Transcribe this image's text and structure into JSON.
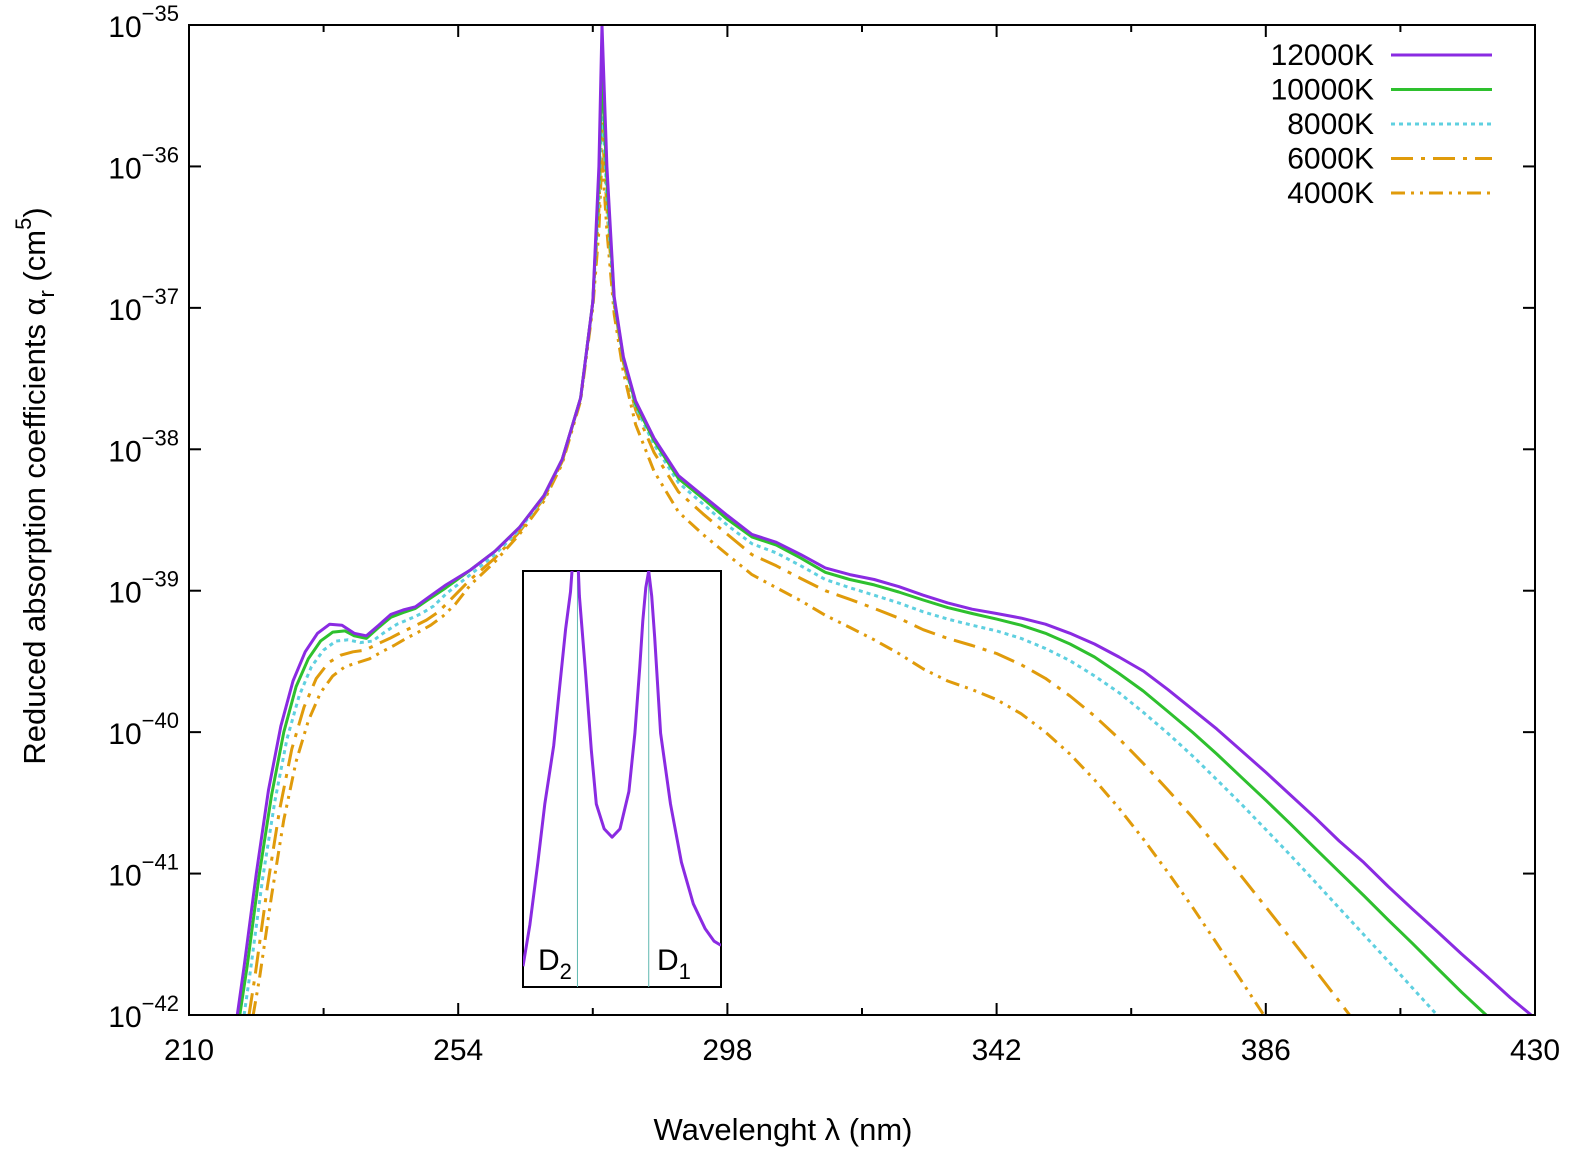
{
  "chart_data": {
    "type": "line",
    "xlabel": "Wavelenght λ (nm)",
    "ylabel": {
      "main": "Reduced absorption coefficients α",
      "sub": "r",
      "unit_open": " (cm",
      "unit_sup": "5",
      "unit_close": ")"
    },
    "scale": {
      "x": "linear",
      "y": "log"
    },
    "xlim": [
      210,
      430
    ],
    "ylim": [
      1e-42,
      1e-35
    ],
    "grid": false,
    "legend_position": "top-right",
    "x_ticks": [
      {
        "value": 210,
        "label": "210"
      },
      {
        "value": 254,
        "label": "254"
      },
      {
        "value": 298,
        "label": "298"
      },
      {
        "value": 342,
        "label": "342"
      },
      {
        "value": 386,
        "label": "386"
      },
      {
        "value": 430,
        "label": "430"
      }
    ],
    "y_ticks": [
      {
        "value": -35,
        "base": "10",
        "exp": "−35"
      },
      {
        "value": -36,
        "base": "10",
        "exp": "−36"
      },
      {
        "value": -37,
        "base": "10",
        "exp": "−37"
      },
      {
        "value": -38,
        "base": "10",
        "exp": "−38"
      },
      {
        "value": -39,
        "base": "10",
        "exp": "−39"
      },
      {
        "value": -40,
        "base": "10",
        "exp": "−40"
      },
      {
        "value": -41,
        "base": "10",
        "exp": "−41"
      },
      {
        "value": -42,
        "base": "10",
        "exp": "−42"
      }
    ],
    "series": [
      {
        "name": "12000K",
        "color": "#8a2be2",
        "dash": "solid",
        "x": [
          217.9,
          219,
          221,
          223,
          225,
          227,
          229,
          231,
          233,
          235,
          237,
          239,
          241,
          243,
          245,
          247,
          249,
          252,
          256,
          260,
          264,
          268,
          271,
          274,
          276,
          277,
          277.5,
          278.3,
          279.5,
          281,
          283,
          286,
          290,
          294,
          298,
          302,
          306,
          310,
          314,
          318,
          322,
          326,
          330,
          334,
          338,
          342,
          346,
          350,
          354,
          358,
          362,
          366,
          370,
          374,
          378,
          382,
          386,
          390,
          394,
          398,
          402,
          406,
          410,
          414,
          418,
          422,
          426,
          430
        ],
        "y": [
          1e-42,
          2.2e-42,
          1e-41,
          3.9e-41,
          1.1e-40,
          2.3e-40,
          3.7e-40,
          5e-40,
          5.8e-40,
          5.7e-40,
          5e-40,
          4.8e-40,
          5.7e-40,
          6.8e-40,
          7.3e-40,
          7.7e-40,
          8.9e-40,
          1.1e-39,
          1.4e-39,
          1.9e-39,
          2.8e-39,
          4.7e-39,
          8.5e-39,
          2.3e-38,
          1.1e-37,
          1e-36,
          1e-35,
          1e-36,
          1.2e-37,
          4.5e-38,
          2.2e-38,
          1.2e-38,
          6.5e-39,
          4.7e-39,
          3.4e-39,
          2.5e-39,
          2.2e-39,
          1.8e-39,
          1.45e-39,
          1.3e-39,
          1.2e-39,
          1.07e-39,
          9.3e-40,
          8.2e-40,
          7.4e-40,
          6.9e-40,
          6.4e-40,
          5.8e-40,
          5e-40,
          4.2e-40,
          3.4e-40,
          2.7e-40,
          2e-40,
          1.45e-40,
          1.05e-40,
          7.4e-41,
          5.2e-41,
          3.6e-41,
          2.5e-41,
          1.7e-41,
          1.2e-41,
          8.1e-42,
          5.6e-42,
          3.9e-42,
          2.7e-42,
          1.9e-42,
          1.32e-42,
          9.5e-43
        ]
      },
      {
        "name": "10000K",
        "color": "#2ec02e",
        "dash": "solid",
        "x": [
          218.3,
          219.5,
          221.5,
          223.5,
          225.5,
          227.5,
          229.5,
          231.5,
          233.5,
          235.5,
          237,
          239,
          241,
          243,
          245,
          247,
          249,
          252,
          256,
          260,
          264,
          268,
          271,
          274,
          276,
          277,
          277.5,
          278.3,
          279.5,
          281,
          283,
          286,
          290,
          294,
          298,
          302,
          306,
          310,
          314,
          318,
          322,
          326,
          330,
          334,
          338,
          342,
          346,
          350,
          354,
          358,
          362,
          366,
          370,
          374,
          378,
          382,
          386,
          390,
          394,
          398,
          402,
          406,
          410,
          414,
          418,
          422,
          426,
          430
        ],
        "y": [
          1e-42,
          2.2e-42,
          1e-41,
          3.6e-41,
          1e-40,
          2.1e-40,
          3.3e-40,
          4.4e-40,
          5.1e-40,
          5.2e-40,
          4.8e-40,
          4.6e-40,
          5.5e-40,
          6.5e-40,
          7e-40,
          7.5e-40,
          8.6e-40,
          1.05e-39,
          1.4e-39,
          1.9e-39,
          2.8e-39,
          4.7e-39,
          8.5e-39,
          2.3e-38,
          1.1e-37,
          8e-37,
          5e-36,
          8e-37,
          1.15e-37,
          4.4e-38,
          2.1e-38,
          1.15e-38,
          6.2e-39,
          4.5e-39,
          3.2e-39,
          2.4e-39,
          2.1e-39,
          1.7e-39,
          1.35e-39,
          1.2e-39,
          1.1e-39,
          9.8e-40,
          8.6e-40,
          7.6e-40,
          6.9e-40,
          6.3e-40,
          5.7e-40,
          5e-40,
          4.2e-40,
          3.4e-40,
          2.6e-40,
          1.95e-40,
          1.4e-40,
          1e-40,
          7e-41,
          4.8e-41,
          3.3e-41,
          2.25e-41,
          1.52e-41,
          1.03e-41,
          7e-42,
          4.7e-42,
          3.2e-42,
          2.15e-42,
          1.45e-42,
          1e-42,
          7e-43,
          5e-43
        ]
      },
      {
        "name": "8000K",
        "color": "#5fd0e0",
        "dash": "4,4",
        "x": [
          219,
          220,
          222,
          224,
          226,
          228,
          230,
          232,
          234,
          236,
          238,
          240,
          242,
          244,
          246,
          248,
          250,
          252,
          256,
          260,
          264,
          268,
          271,
          274,
          276,
          277,
          277.5,
          278.3,
          279.5,
          281,
          283,
          286,
          290,
          294,
          298,
          302,
          306,
          310,
          314,
          318,
          322,
          326,
          330,
          334,
          338,
          342,
          346,
          350,
          354,
          358,
          362,
          366,
          370,
          374,
          378,
          382,
          386,
          390,
          394,
          398,
          402,
          406,
          410,
          414,
          418,
          422,
          426,
          430
        ],
        "y": [
          1e-42,
          2e-42,
          9e-42,
          3.2e-41,
          8.9e-41,
          1.8e-40,
          2.9e-40,
          3.8e-40,
          4.4e-40,
          4.5e-40,
          4.3e-40,
          4.4e-40,
          5.1e-40,
          5.8e-40,
          6.3e-40,
          6.9e-40,
          7.8e-40,
          9.5e-40,
          1.3e-39,
          1.8e-39,
          2.7e-39,
          4.6e-39,
          8.4e-39,
          2.3e-38,
          1.1e-37,
          6e-37,
          3e-36,
          6e-37,
          1.1e-37,
          4.3e-38,
          2e-38,
          1.08e-38,
          5.8e-39,
          4.1e-39,
          2.9e-39,
          2.15e-39,
          1.85e-39,
          1.5e-39,
          1.2e-39,
          1.05e-39,
          9.3e-40,
          8.2e-40,
          7.1e-40,
          6.3e-40,
          5.7e-40,
          5.2e-40,
          4.6e-40,
          3.9e-40,
          3.2e-40,
          2.5e-40,
          1.9e-40,
          1.38e-40,
          9.8e-41,
          6.8e-41,
          4.6e-41,
          3.1e-41,
          2.05e-41,
          1.35e-41,
          8.8e-42,
          5.7e-42,
          3.7e-42,
          2.4e-42,
          1.55e-42,
          1e-42,
          6.5e-43,
          4.2e-43,
          2.7e-43,
          1.8e-43
        ]
      },
      {
        "name": "6000K",
        "color": "#e09b0b",
        "dash": "22,8,4,8",
        "x": [
          219.8,
          220.8,
          222.8,
          224.8,
          226.8,
          228.8,
          230.8,
          232.8,
          234.8,
          236.8,
          238.8,
          240.8,
          242.8,
          244.8,
          246.8,
          248.8,
          250.8,
          252.8,
          256,
          260,
          264,
          268,
          271,
          274,
          276,
          277,
          277.5,
          278.3,
          279.5,
          281,
          283,
          286,
          290,
          294,
          298,
          302,
          306,
          310,
          314,
          318,
          322,
          326,
          330,
          334,
          338,
          342,
          346,
          350,
          354,
          358,
          362,
          366,
          370,
          374,
          378,
          382,
          386,
          390,
          394,
          398,
          402,
          406
        ],
        "y": [
          1e-42,
          1.9e-42,
          8e-42,
          2.8e-41,
          7.6e-41,
          1.5e-40,
          2.4e-40,
          3.1e-40,
          3.5e-40,
          3.7e-40,
          3.8e-40,
          4.2e-40,
          4.6e-40,
          5.1e-40,
          5.6e-40,
          6.2e-40,
          7.1e-40,
          8.7e-40,
          1.2e-39,
          1.7e-39,
          2.6e-39,
          4.5e-39,
          8.2e-39,
          2.3e-38,
          1.1e-37,
          5e-37,
          2e-36,
          5e-37,
          1.05e-37,
          4.1e-38,
          1.9e-38,
          9.5e-39,
          5e-39,
          3.5e-39,
          2.5e-39,
          1.8e-39,
          1.5e-39,
          1.22e-39,
          1e-39,
          8.7e-40,
          7.5e-40,
          6.4e-40,
          5.3e-40,
          4.6e-40,
          4.1e-40,
          3.6e-40,
          3e-40,
          2.4e-40,
          1.8e-40,
          1.3e-40,
          9e-41,
          6e-41,
          3.9e-41,
          2.5e-41,
          1.55e-41,
          9.6e-42,
          5.8e-42,
          3.5e-42,
          2.1e-42,
          1.25e-42,
          7.4e-43,
          4.4e-43
        ]
      },
      {
        "name": "4000K",
        "color": "#e09b0b",
        "dash": "14,6,3,6,3,6",
        "x": [
          220.5,
          221.5,
          223.5,
          225.5,
          227.5,
          229.5,
          231.5,
          233.5,
          235.5,
          237.5,
          239.5,
          241.5,
          243.5,
          245.5,
          247.5,
          249.5,
          251.5,
          253.5,
          256,
          260,
          264,
          268,
          271,
          274,
          276,
          277,
          277.5,
          278.3,
          279.5,
          281,
          283,
          286,
          290,
          294,
          298,
          302,
          306,
          310,
          314,
          318,
          322,
          326,
          330,
          334,
          338,
          342,
          346,
          350,
          354,
          358,
          362,
          366,
          370,
          374,
          378,
          382,
          386,
          390,
          394
        ],
        "y": [
          1e-42,
          1.8e-42,
          7e-42,
          2.4e-41,
          6.2e-41,
          1.2e-40,
          1.9e-40,
          2.5e-40,
          2.9e-40,
          3.1e-40,
          3.3e-40,
          3.7e-40,
          4.1e-40,
          4.6e-40,
          5.1e-40,
          5.7e-40,
          6.6e-40,
          8e-40,
          1.1e-39,
          1.6e-39,
          2.5e-39,
          4.3e-39,
          7.9e-39,
          2.2e-38,
          1e-37,
          3.5e-37,
          1.2e-36,
          3.5e-37,
          9e-38,
          3.5e-38,
          1.5e-38,
          7e-39,
          3.6e-39,
          2.5e-39,
          1.8e-39,
          1.3e-39,
          1.05e-39,
          8.5e-40,
          6.7e-40,
          5.5e-40,
          4.5e-40,
          3.6e-40,
          2.8e-40,
          2.3e-40,
          2e-40,
          1.7e-40,
          1.35e-40,
          1e-40,
          7e-41,
          4.6e-41,
          2.9e-41,
          1.75e-41,
          1.02e-41,
          5.8e-42,
          3.2e-42,
          1.75e-42,
          9.5e-43,
          5e-43,
          2.7e-43
        ]
      }
    ],
    "inset": {
      "labels": [
        {
          "main": "D",
          "sub": "2"
        },
        {
          "main": "D",
          "sub": "1"
        }
      ],
      "line_color": "#8a2be2",
      "marker_color": "#5fb8b0",
      "curve": [
        [
          0.0,
          0.05
        ],
        [
          0.035,
          0.15
        ],
        [
          0.075,
          0.3
        ],
        [
          0.11,
          0.44
        ],
        [
          0.155,
          0.58
        ],
        [
          0.185,
          0.72
        ],
        [
          0.215,
          0.86
        ],
        [
          0.24,
          0.95
        ],
        [
          0.255,
          1.05
        ],
        [
          0.275,
          1.05
        ],
        [
          0.285,
          0.94
        ],
        [
          0.315,
          0.76
        ],
        [
          0.345,
          0.57
        ],
        [
          0.37,
          0.44
        ],
        [
          0.41,
          0.38
        ],
        [
          0.45,
          0.36
        ],
        [
          0.49,
          0.38
        ],
        [
          0.535,
          0.47
        ],
        [
          0.565,
          0.61
        ],
        [
          0.59,
          0.77
        ],
        [
          0.605,
          0.88
        ],
        [
          0.62,
          0.96
        ],
        [
          0.635,
          1.0
        ],
        [
          0.65,
          0.94
        ],
        [
          0.665,
          0.84
        ],
        [
          0.695,
          0.61
        ],
        [
          0.745,
          0.44
        ],
        [
          0.8,
          0.3
        ],
        [
          0.86,
          0.2
        ],
        [
          0.92,
          0.14
        ],
        [
          0.965,
          0.11
        ],
        [
          1.0,
          0.1
        ]
      ],
      "markers": [
        0.275,
        0.635
      ]
    }
  }
}
